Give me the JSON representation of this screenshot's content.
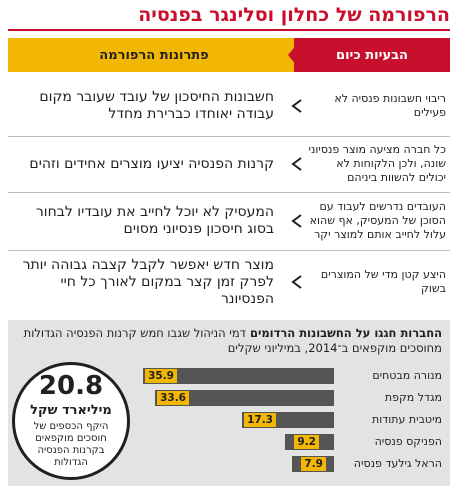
{
  "title": "הרפורמה של כחלון וסלינגר בפנסיה",
  "headers": {
    "problems": "הבעיות כיום",
    "solutions": "פתרונות הרפורמה"
  },
  "rows": [
    {
      "problem": "ריבוי חשבונות פנסיה לא פעילים",
      "solution": "חשבונות החיסכון של עובד שעובר מקום עבודה יאוחדו כברירת מחדל"
    },
    {
      "problem": "כל חברה מציעה מוצר פנסיוני שונה, ולכן הלקוחות לא יכולים להשוות ביניהם",
      "solution": "קרנות הפנסיה יציעו מוצרים אחידים וזהים"
    },
    {
      "problem": "העובדים נדרשים לעבוד עם הסוכן של המעסיק, אף שהוא עלול לחייב אותם למוצר יקר",
      "solution": "המעסיק לא יוכל לחייב את עובדיו לבחור בסוג חיסכון פנסיוני מסוים"
    },
    {
      "problem": "היצע קטן מדי של המוצרים בשוק",
      "solution": "מוצר חדש יאפשר לקבל קצבה גבוהה יותר לפרק זמן קצר במקום לאורך כל חיי הפנסיונר"
    }
  ],
  "panel": {
    "title_bold": "החברות חגגו על החשבונות הרדומים",
    "title_rest": "דמי הניהול שגבו חמש קרנות הפנסיה הגדולות מחוסכים מוקפאים ב־2014, במיליוני שקלים"
  },
  "chart_data": {
    "type": "bar",
    "categories": [
      "מנורה מבטחים",
      "מגדל מקפת",
      "מיטבית עתודות",
      "הפניקס פנסיה",
      "הראל גילעד פנסיה"
    ],
    "values": [
      35.9,
      33.6,
      17.3,
      9.2,
      7.9
    ],
    "value_labels": [
      "35.9",
      "33.6",
      "17.3",
      "9.2",
      "7.9"
    ],
    "xlim": [
      0,
      36
    ],
    "bar_color": "#555555",
    "label_color": "#f2b705"
  },
  "callout": {
    "number": "20.8",
    "unit": "מיליארד שקל",
    "description": "היקף הכספים של חוסכים מוקפאים בקרנות הפנסיה הגדולות"
  },
  "colors": {
    "accent_red": "#c8102e",
    "accent_yellow": "#f2b705"
  }
}
